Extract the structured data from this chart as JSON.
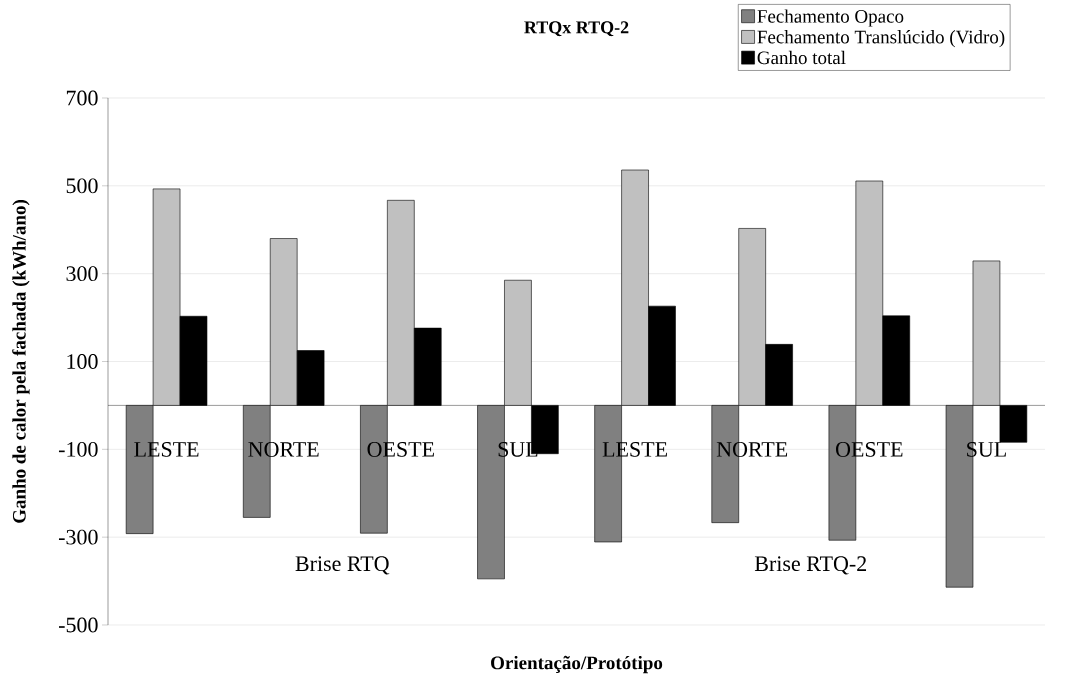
{
  "chart_data": {
    "type": "bar",
    "title": "RTQx RTQ-2",
    "xlabel": "Orientação/Protótipo",
    "ylabel": "Ganho de calor pela fachada (kWh/ano)",
    "categories": [
      "LESTE",
      "NORTE",
      "OESTE",
      "SUL",
      "LESTE",
      "NORTE",
      "OESTE",
      "SUL"
    ],
    "series": [
      {
        "name": "Fechamento Opaco",
        "color": "#808080",
        "values": [
          -292,
          -255,
          -291,
          -395,
          -311,
          -267,
          -307,
          -414
        ]
      },
      {
        "name": "Fechamento Translúcido (Vidro)",
        "color": "#c0c0c0",
        "values": [
          493,
          380,
          467,
          285,
          536,
          403,
          511,
          329
        ]
      },
      {
        "name": "Ganho total",
        "color": "#000000",
        "values": [
          203,
          125,
          176,
          -110,
          226,
          139,
          204,
          -84
        ]
      }
    ],
    "annotations": [
      "Brise RTQ",
      "Brise RTQ-2"
    ],
    "ylim": [
      -500,
      700
    ],
    "yticks": [
      -500,
      -300,
      -100,
      100,
      300,
      500,
      700
    ],
    "grid": "y",
    "legend": "top right"
  }
}
